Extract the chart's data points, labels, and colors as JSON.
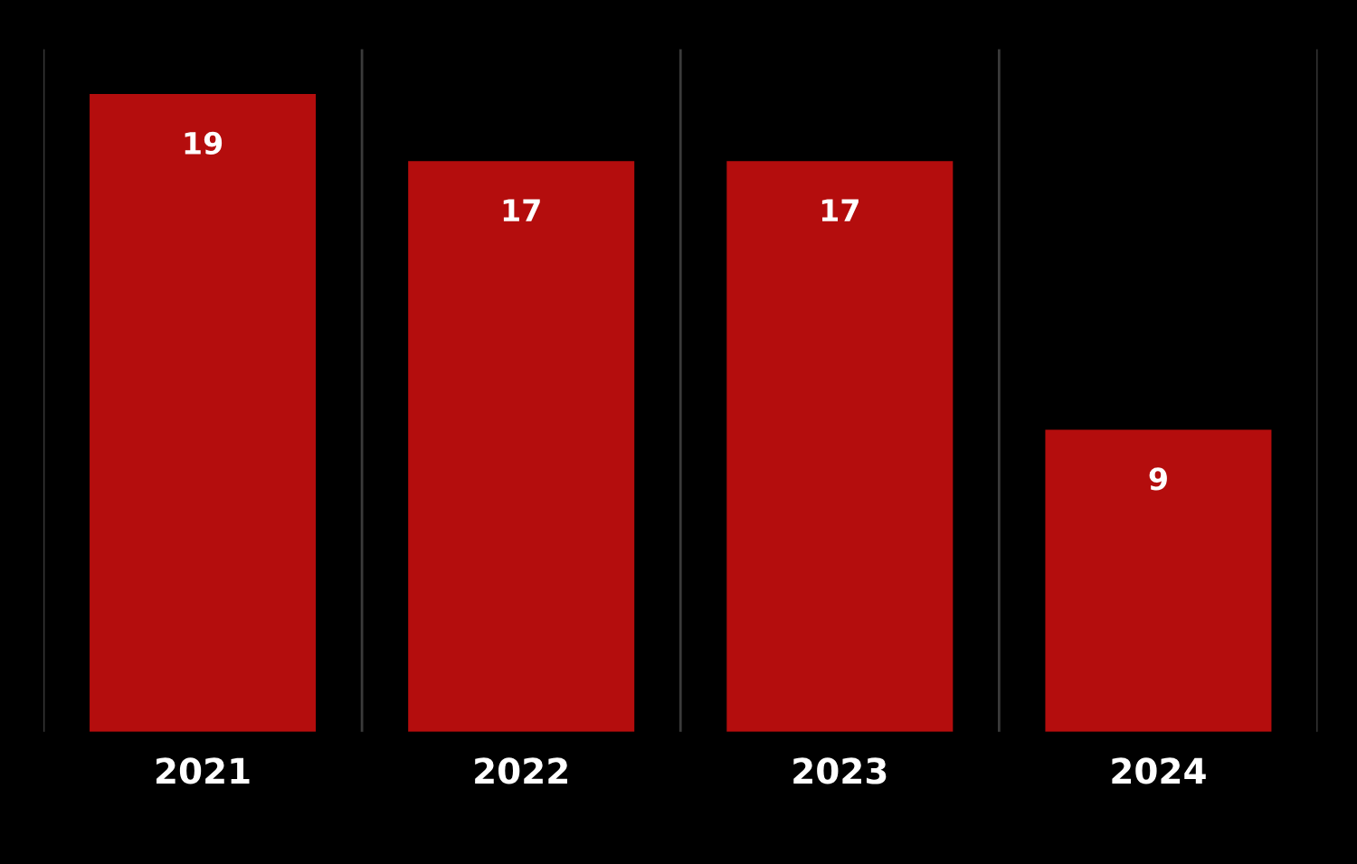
{
  "chart_data": {
    "type": "bar",
    "categories": [
      "2021",
      "2022",
      "2023",
      "2024"
    ],
    "values": [
      19,
      17,
      17,
      9
    ],
    "color": "#b40d0d",
    "data_labels": true,
    "grid": "x",
    "legend": false
  }
}
